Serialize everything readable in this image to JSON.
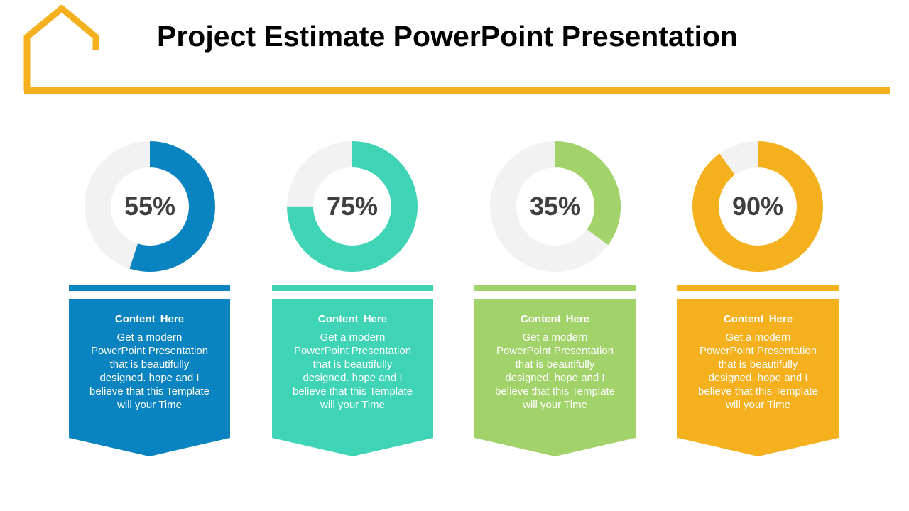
{
  "title": "Project Estimate PowerPoint Presentation",
  "colors": {
    "accent": "#F4B01D",
    "track": "#F2F2F2"
  },
  "items": [
    {
      "label": "55%",
      "heading": "Content  Here",
      "body": "Get a modern PowerPoint Presentation that is beautifully designed. hope and I believe that this Template will your Time",
      "color": "#0A84C1"
    },
    {
      "label": "75%",
      "heading": "Content  Here",
      "body": "Get a modern PowerPoint Presentation that is beautifully designed. hope and I believe that this Template will your Time",
      "color": "#3ED4B5"
    },
    {
      "label": "35%",
      "heading": "Content  Here",
      "body": "Get a modern PowerPoint Presentation that is beautifully designed. hope and I believe that this Template will your Time",
      "color": "#A2D36A"
    },
    {
      "label": "90%",
      "heading": "Content  Here",
      "body": "Get a modern PowerPoint Presentation that is beautifully designed. hope and I believe that this Template will your Time",
      "color": "#F4B01D"
    }
  ],
  "chart_data": [
    {
      "type": "pie",
      "style": "donut",
      "values": [
        55,
        45
      ],
      "color": "#0A84C1"
    },
    {
      "type": "pie",
      "style": "donut",
      "values": [
        75,
        25
      ],
      "color": "#3ED4B5"
    },
    {
      "type": "pie",
      "style": "donut",
      "values": [
        35,
        65
      ],
      "color": "#A2D36A"
    },
    {
      "type": "pie",
      "style": "donut",
      "values": [
        90,
        10
      ],
      "color": "#F4B01D"
    }
  ]
}
